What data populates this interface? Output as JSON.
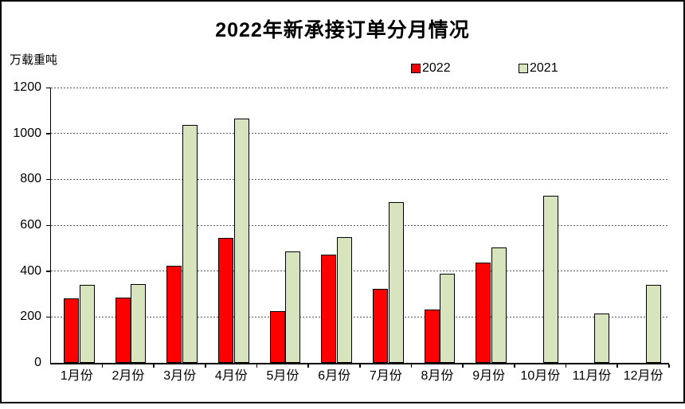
{
  "chart_data": {
    "type": "bar",
    "title": "2022年新承接订单分月情况",
    "ylabel": "万载重吨",
    "xlabel": "",
    "categories": [
      "1月份",
      "2月份",
      "3月份",
      "4月份",
      "5月份",
      "6月份",
      "7月份",
      "8月份",
      "9月份",
      "10月份",
      "11月份",
      "12月份"
    ],
    "series": [
      {
        "name": "2022",
        "color": "#ff0000",
        "values": [
          280,
          283,
          424,
          545,
          226,
          470,
          322,
          232,
          438,
          null,
          null,
          null
        ]
      },
      {
        "name": "2021",
        "color": "#d7e4bd",
        "values": [
          339,
          344,
          1038,
          1066,
          487,
          548,
          699,
          390,
          503,
          730,
          214,
          341
        ]
      }
    ],
    "ylim": [
      0,
      1200
    ],
    "yticks": [
      0,
      200,
      400,
      600,
      800,
      1000,
      1200
    ],
    "grid": true,
    "gridline_style": "dotted",
    "legend_position": "top",
    "colors": {
      "series_2022": "#ff0000",
      "series_2021": "#d7e4bd",
      "axis": "#000000",
      "gridline": "#5a5a5a",
      "background": "#ffffff",
      "text": "#000000"
    }
  }
}
